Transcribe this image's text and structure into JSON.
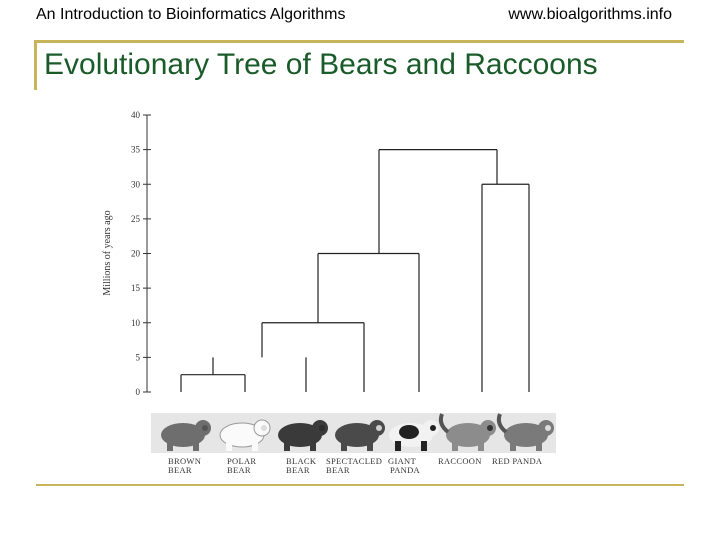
{
  "header": {
    "left": "An Introduction to Bioinformatics Algorithms",
    "right": "www.bioalgorithms.info"
  },
  "title": "Evolutionary Tree of Bears and Raccoons",
  "chart_data": {
    "type": "dendrogram",
    "ylabel": "Millions of years ago",
    "yticks": [
      "40",
      "35",
      "30",
      "25",
      "20",
      "15",
      "10",
      "5",
      "0"
    ],
    "ylim": [
      0,
      40
    ],
    "species": [
      {
        "label1": "BROWN",
        "label2": "BEAR"
      },
      {
        "label1": "POLAR",
        "label2": "BEAR"
      },
      {
        "label1": "BLACK",
        "label2": "BEAR"
      },
      {
        "label1": "SPECTACLED",
        "label2": "BEAR"
      },
      {
        "label1": "GIANT",
        "label2": "PANDA"
      },
      {
        "label1": "RACCOON",
        "label2": ""
      },
      {
        "label1": "RED PANDA",
        "label2": ""
      }
    ],
    "merges_mya": {
      "brown_polar": 2.5,
      "brownpolar_black": 5,
      "bears_spectacled": 10,
      "bears_giantpanda": 20,
      "raccoon_redpanda": 30,
      "bears_raccoons": 35
    }
  },
  "colors": {
    "accent": "#c8b45a",
    "title": "#1a5b2a"
  }
}
